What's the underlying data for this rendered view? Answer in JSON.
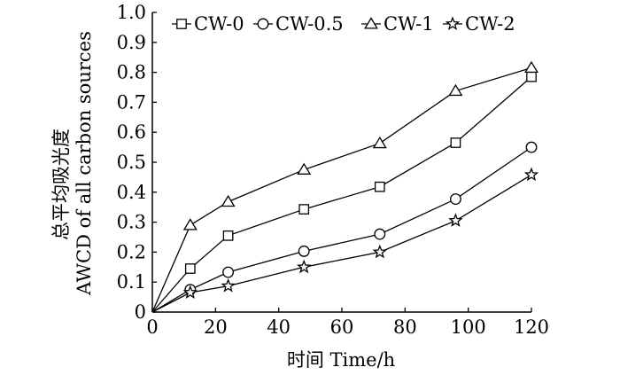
{
  "chart_data": {
    "type": "line",
    "xlabel": "时间 Time/h",
    "ylabel_line1": "总平均吸光度",
    "ylabel_line2": "AWCD of all carbon sources",
    "xlim": [
      0,
      120
    ],
    "ylim": [
      0,
      1.0
    ],
    "x_ticks": [
      "0",
      "20",
      "40",
      "60",
      "80",
      "100",
      "120"
    ],
    "y_ticks": [
      "0",
      "0.1",
      "0.2",
      "0.3",
      "0.4",
      "0.5",
      "0.6",
      "0.7",
      "0.8",
      "0.9",
      "1.0"
    ],
    "grid": false,
    "legend_position": "top",
    "x": [
      0,
      12,
      24,
      48,
      72,
      96,
      120
    ],
    "series": [
      {
        "name": "CW-0",
        "marker": "square",
        "values": [
          0,
          0.145,
          0.255,
          0.343,
          0.418,
          0.565,
          0.785
        ]
      },
      {
        "name": "CW-0.5",
        "marker": "circle",
        "values": [
          0,
          0.075,
          0.133,
          0.203,
          0.26,
          0.377,
          0.55
        ]
      },
      {
        "name": "CW-1",
        "marker": "triangle",
        "values": [
          0,
          0.29,
          0.368,
          0.475,
          0.563,
          0.738,
          0.815
        ]
      },
      {
        "name": "CW-2",
        "marker": "star",
        "values": [
          0,
          0.065,
          0.087,
          0.15,
          0.2,
          0.305,
          0.458
        ]
      }
    ]
  }
}
